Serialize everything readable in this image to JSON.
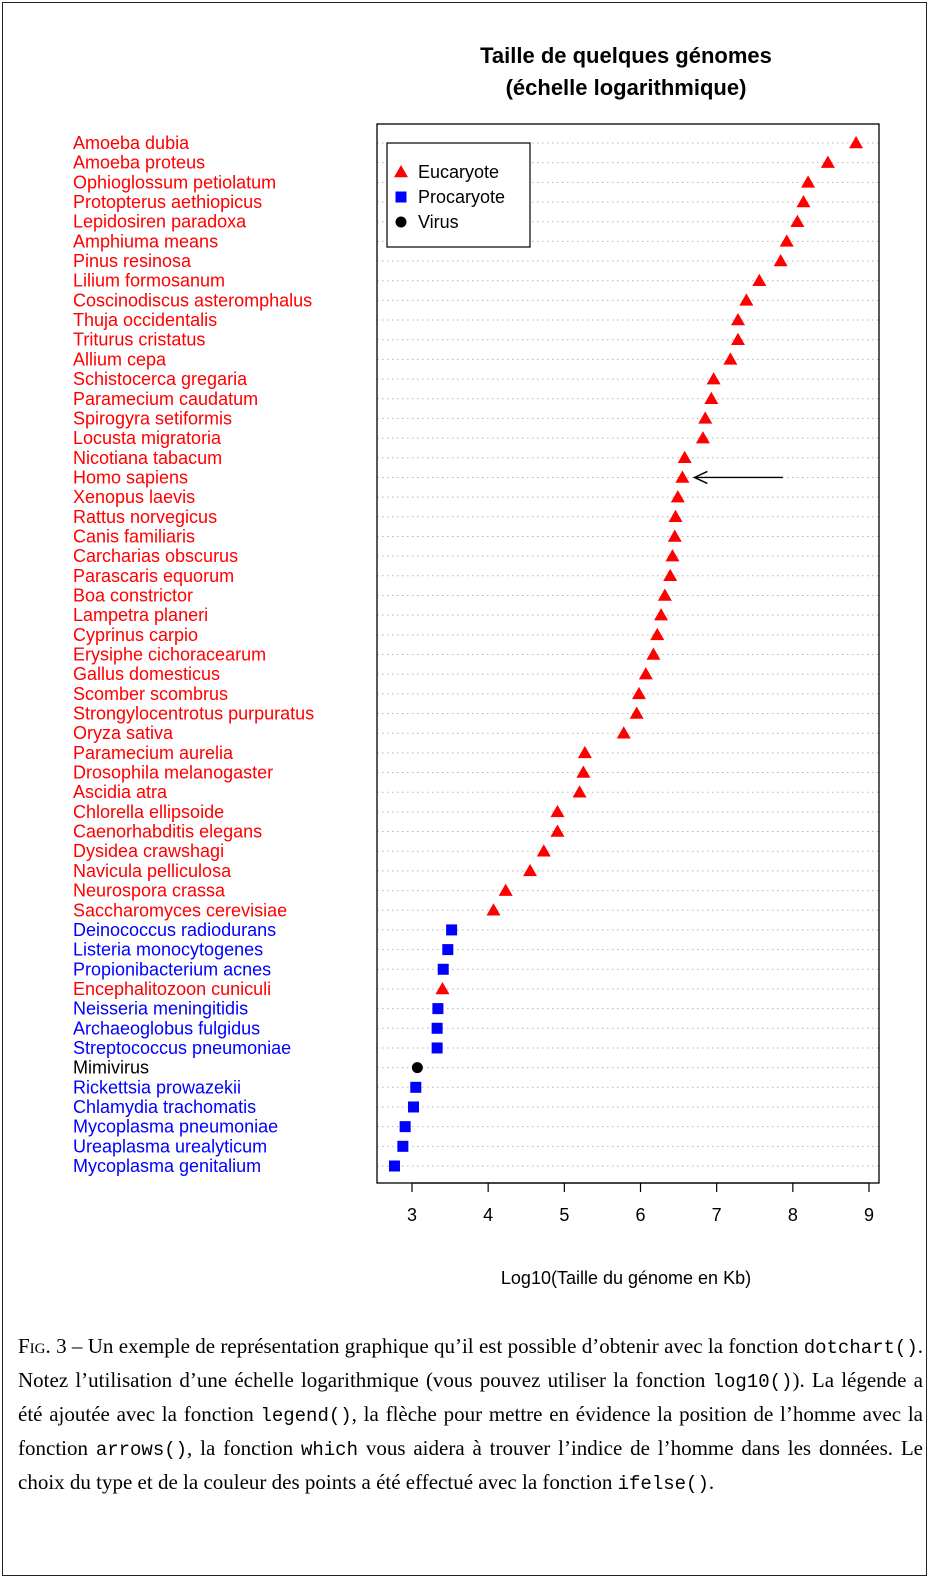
{
  "chart_data": {
    "type": "scatter",
    "title_lines": [
      "Taille de quelques génomes",
      "(échelle logarithmique)"
    ],
    "xlabel": "Log10(Taille du génome en Kb)",
    "ylabel": "",
    "xlim": [
      2.7,
      9.0
    ],
    "xticks": [
      "3",
      "4",
      "5",
      "6",
      "7",
      "8",
      "9"
    ],
    "grid": "dotted horizontal",
    "legend_position": "top-left",
    "legend": [
      {
        "label": "Eucaryote",
        "kind": "eucaryote"
      },
      {
        "label": "Procaryote",
        "kind": "procaryote"
      },
      {
        "label": "Virus",
        "kind": "virus"
      }
    ],
    "colors": {
      "eucaryote": "#ff0000",
      "procaryote": "#0000ff",
      "virus": "#000000"
    },
    "markers": {
      "eucaryote": "triangle",
      "procaryote": "square",
      "virus": "circle"
    },
    "arrow_target": "Homo sapiens",
    "points": [
      {
        "name": "Amoeba dubia",
        "kind": "eucaryote",
        "x": 8.83
      },
      {
        "name": "Amoeba proteus",
        "kind": "eucaryote",
        "x": 8.46
      },
      {
        "name": "Ophioglossum petiolatum",
        "kind": "eucaryote",
        "x": 8.2
      },
      {
        "name": "Protopterus aethiopicus",
        "kind": "eucaryote",
        "x": 8.14
      },
      {
        "name": "Lepidosiren paradoxa",
        "kind": "eucaryote",
        "x": 8.06
      },
      {
        "name": "Amphiuma means",
        "kind": "eucaryote",
        "x": 7.92
      },
      {
        "name": "Pinus resinosa",
        "kind": "eucaryote",
        "x": 7.84
      },
      {
        "name": "Lilium formosanum",
        "kind": "eucaryote",
        "x": 7.56
      },
      {
        "name": "Coscinodiscus asteromphalus",
        "kind": "eucaryote",
        "x": 7.39
      },
      {
        "name": "Thuja occidentalis",
        "kind": "eucaryote",
        "x": 7.28
      },
      {
        "name": "Triturus cristatus",
        "kind": "eucaryote",
        "x": 7.28
      },
      {
        "name": "Allium cepa",
        "kind": "eucaryote",
        "x": 7.18
      },
      {
        "name": "Schistocerca gregaria",
        "kind": "eucaryote",
        "x": 6.96
      },
      {
        "name": "Paramecium caudatum",
        "kind": "eucaryote",
        "x": 6.93
      },
      {
        "name": "Spirogyra setiformis",
        "kind": "eucaryote",
        "x": 6.85
      },
      {
        "name": "Locusta migratoria",
        "kind": "eucaryote",
        "x": 6.82
      },
      {
        "name": "Nicotiana tabacum",
        "kind": "eucaryote",
        "x": 6.58
      },
      {
        "name": "Homo sapiens",
        "kind": "eucaryote",
        "x": 6.55
      },
      {
        "name": "Xenopus laevis",
        "kind": "eucaryote",
        "x": 6.49
      },
      {
        "name": "Rattus norvegicus",
        "kind": "eucaryote",
        "x": 6.46
      },
      {
        "name": "Canis familiaris",
        "kind": "eucaryote",
        "x": 6.45
      },
      {
        "name": "Carcharias obscurus",
        "kind": "eucaryote",
        "x": 6.42
      },
      {
        "name": "Parascaris equorum",
        "kind": "eucaryote",
        "x": 6.39
      },
      {
        "name": "Boa constrictor",
        "kind": "eucaryote",
        "x": 6.32
      },
      {
        "name": "Lampetra planeri",
        "kind": "eucaryote",
        "x": 6.27
      },
      {
        "name": "Cyprinus carpio",
        "kind": "eucaryote",
        "x": 6.22
      },
      {
        "name": "Erysiphe cichoracearum",
        "kind": "eucaryote",
        "x": 6.17
      },
      {
        "name": "Gallus domesticus",
        "kind": "eucaryote",
        "x": 6.07
      },
      {
        "name": "Scomber scombrus",
        "kind": "eucaryote",
        "x": 5.98
      },
      {
        "name": "Strongylocentrotus purpuratus",
        "kind": "eucaryote",
        "x": 5.95
      },
      {
        "name": "Oryza sativa",
        "kind": "eucaryote",
        "x": 5.78
      },
      {
        "name": "Paramecium aurelia",
        "kind": "eucaryote",
        "x": 5.27
      },
      {
        "name": "Drosophila melanogaster",
        "kind": "eucaryote",
        "x": 5.25
      },
      {
        "name": "Ascidia atra",
        "kind": "eucaryote",
        "x": 5.2
      },
      {
        "name": "Chlorella ellipsoide",
        "kind": "eucaryote",
        "x": 4.91
      },
      {
        "name": "Caenorhabditis elegans",
        "kind": "eucaryote",
        "x": 4.91
      },
      {
        "name": "Dysidea crawshagi",
        "kind": "eucaryote",
        "x": 4.73
      },
      {
        "name": "Navicula pelliculosa",
        "kind": "eucaryote",
        "x": 4.55
      },
      {
        "name": "Neurospora crassa",
        "kind": "eucaryote",
        "x": 4.23
      },
      {
        "name": "Saccharomyces cerevisiae",
        "kind": "eucaryote",
        "x": 4.07
      },
      {
        "name": "Deinococcus radiodurans",
        "kind": "procaryote",
        "x": 3.52
      },
      {
        "name": "Listeria monocytogenes",
        "kind": "procaryote",
        "x": 3.47
      },
      {
        "name": "Propionibacterium acnes",
        "kind": "procaryote",
        "x": 3.41
      },
      {
        "name": "Encephalitozoon cuniculi",
        "kind": "eucaryote",
        "x": 3.4
      },
      {
        "name": "Neisseria meningitidis",
        "kind": "procaryote",
        "x": 3.34
      },
      {
        "name": "Archaeoglobus fulgidus",
        "kind": "procaryote",
        "x": 3.33
      },
      {
        "name": "Streptococcus pneumoniae",
        "kind": "procaryote",
        "x": 3.33
      },
      {
        "name": "Mimivirus",
        "kind": "virus",
        "x": 3.07
      },
      {
        "name": "Rickettsia prowazekii",
        "kind": "procaryote",
        "x": 3.05
      },
      {
        "name": "Chlamydia trachomatis",
        "kind": "procaryote",
        "x": 3.02
      },
      {
        "name": "Mycoplasma pneumoniae",
        "kind": "procaryote",
        "x": 2.91
      },
      {
        "name": "Ureaplasma urealyticum",
        "kind": "procaryote",
        "x": 2.88
      },
      {
        "name": "Mycoplasma genitalium",
        "kind": "procaryote",
        "x": 2.77
      }
    ]
  },
  "caption": {
    "fig_label": "Fig. 3",
    "dash": " – ",
    "t1": "Un exemple de représentation graphique qu’il est possible d’obtenir avec la fonction ",
    "c1": "dotchart()",
    "t2": ". Notez l’utilisation d’une échelle logarithmique (vous pouvez utiliser la fonction ",
    "c2": "log10()",
    "t3": "). La légende a été ajoutée avec la fonction ",
    "c3": "legend()",
    "t4": ", la flèche pour mettre en évidence la position de l’homme avec la fonction ",
    "c4": "arrows()",
    "t5": ", la fonction ",
    "c5": "which",
    "t6": " vous aidera à trouver l’indice de l’homme dans les données. Le choix du type et de la couleur des points a été effectué avec la fonction ",
    "c6": "ifelse()",
    "t7": "."
  }
}
